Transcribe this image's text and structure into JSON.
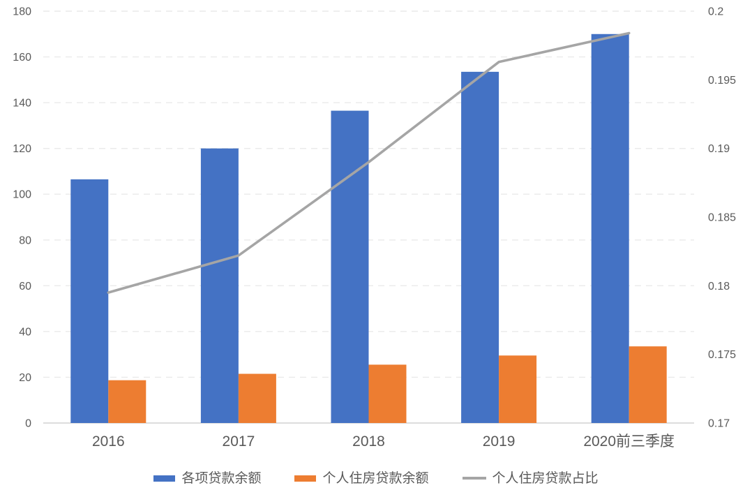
{
  "chart_data": {
    "type": "combo",
    "title": "",
    "categories": [
      "2016",
      "2017",
      "2018",
      "2019",
      "2020前三季度"
    ],
    "series": [
      {
        "name": "各项贷款余额",
        "type": "bar",
        "axis": "left",
        "color": "#4472C4",
        "values": [
          106.5,
          120,
          136.5,
          153.5,
          170
        ]
      },
      {
        "name": "个人住房贷款余额",
        "type": "bar",
        "axis": "left",
        "color": "#ED7D31",
        "values": [
          18.7,
          21.5,
          25.5,
          29.5,
          33.5
        ]
      },
      {
        "name": "个人住房贷款占比",
        "type": "line",
        "axis": "right",
        "color": "#A5A5A5",
        "values": [
          0.1795,
          0.1822,
          0.189,
          0.1963,
          0.1984
        ]
      }
    ],
    "left_axis": {
      "min": 0,
      "max": 180,
      "step": 20,
      "ticks": [
        "0",
        "20",
        "40",
        "60",
        "80",
        "100",
        "120",
        "140",
        "160",
        "180"
      ]
    },
    "right_axis": {
      "min": 0.17,
      "max": 0.2,
      "step": 0.005,
      "ticks": [
        "0.17",
        "0.175",
        "0.18",
        "0.185",
        "0.19",
        "0.195",
        "0.2"
      ]
    },
    "grid": {
      "horizontal": true,
      "style": "dashed",
      "color": "#EAEAEA"
    },
    "axis_line_color": "#D2D2D2",
    "label_color": "#595959",
    "legend_position": "bottom"
  }
}
